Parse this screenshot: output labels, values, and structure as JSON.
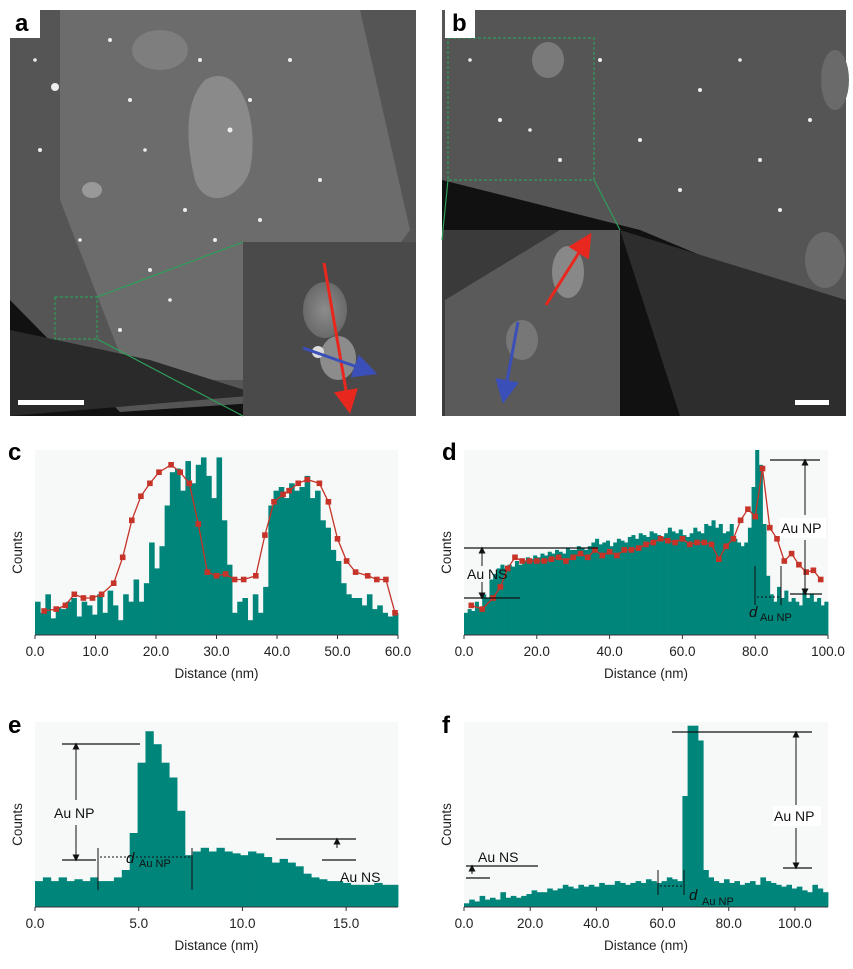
{
  "panels": {
    "a": "a",
    "b": "b",
    "c": "c",
    "d": "d",
    "e": "e",
    "f": "f"
  },
  "annotations": {
    "au_np": "Au NP",
    "au_ns": "Au NS",
    "d_italic": "d",
    "d_sub": "Au NP"
  },
  "colors": {
    "bar": "#00857a",
    "line": "#c63328",
    "bg": "#f7f8f8",
    "arrow_red": "#e8281e",
    "arrow_blue": "#3a4fb8",
    "inset_box": "#2e9e5a"
  },
  "chart_data": [
    {
      "id": "c",
      "type": "bar",
      "xlabel": "Distance (nm)",
      "ylabel": "Counts",
      "xlim": [
        0,
        60
      ],
      "ylim": [
        0,
        100
      ],
      "xticks": [
        "0.0",
        "10.0",
        "20.0",
        "30.0",
        "40.0",
        "50.0",
        "60.0"
      ],
      "bar_values": [
        18,
        12,
        22,
        9,
        15,
        14,
        18,
        20,
        10,
        18,
        16,
        11,
        22,
        12,
        24,
        16,
        8,
        22,
        18,
        30,
        18,
        28,
        50,
        36,
        48,
        70,
        88,
        90,
        78,
        94,
        82,
        92,
        96,
        86,
        74,
        96,
        62,
        38,
        12,
        18,
        20,
        8,
        22,
        12,
        26,
        70,
        78,
        80,
        74,
        82,
        78,
        80,
        86,
        74,
        78,
        62,
        58,
        46,
        40,
        28,
        22,
        20,
        20,
        16,
        22,
        14,
        16,
        12,
        10,
        12
      ],
      "line": [
        [
          1.5,
          13
        ],
        [
          3.5,
          14
        ],
        [
          5,
          16
        ],
        [
          6.5,
          22
        ],
        [
          8,
          20
        ],
        [
          9.5,
          20
        ],
        [
          11,
          22
        ],
        [
          13,
          28
        ],
        [
          14.5,
          42
        ],
        [
          16,
          62
        ],
        [
          17.5,
          75
        ],
        [
          19,
          82
        ],
        [
          20.5,
          88
        ],
        [
          22.5,
          92
        ],
        [
          24,
          88
        ],
        [
          25.5,
          82
        ],
        [
          27,
          60
        ],
        [
          28.5,
          34
        ],
        [
          30,
          32
        ],
        [
          31.5,
          33
        ],
        [
          33,
          30
        ],
        [
          34.5,
          30
        ],
        [
          36.5,
          32
        ],
        [
          38,
          54
        ],
        [
          39.5,
          72
        ],
        [
          41,
          76
        ],
        [
          42,
          78
        ],
        [
          43.5,
          82
        ],
        [
          45,
          84
        ],
        [
          47,
          82
        ],
        [
          48.5,
          72
        ],
        [
          50,
          52
        ],
        [
          51.5,
          40
        ],
        [
          53,
          34
        ],
        [
          55,
          32
        ],
        [
          56.5,
          30
        ],
        [
          58,
          30
        ],
        [
          59.5,
          12
        ]
      ]
    },
    {
      "id": "d",
      "type": "bar",
      "xlabel": "Distance (nm)",
      "ylabel": "Counts",
      "xlim": [
        0,
        100
      ],
      "ylim": [
        0,
        100
      ],
      "xticks": [
        "0.0",
        "20.0",
        "40.0",
        "60.0",
        "80.0",
        "100.0"
      ],
      "bar_values": [
        12,
        14,
        13,
        18,
        15,
        22,
        20,
        30,
        33,
        36,
        38,
        36,
        38,
        37,
        40,
        38,
        40,
        42,
        41,
        43,
        42,
        44,
        43,
        45,
        44,
        46,
        45,
        44,
        47,
        46,
        46,
        48,
        47,
        46,
        48,
        50,
        52,
        49,
        50,
        51,
        48,
        50,
        52,
        51,
        50,
        53,
        54,
        52,
        55,
        54,
        53,
        56,
        55,
        54,
        53,
        55,
        58,
        56,
        55,
        57,
        54,
        53,
        55,
        58,
        56,
        55,
        60,
        59,
        62,
        58,
        60,
        55,
        56,
        60,
        52,
        50,
        48,
        50,
        58,
        80,
        100,
        92,
        60,
        32,
        22,
        18,
        26,
        20,
        24,
        18,
        20,
        18,
        16,
        24,
        20,
        22,
        18,
        20,
        16,
        18
      ],
      "line": [
        [
          2,
          16
        ],
        [
          5,
          14
        ],
        [
          8,
          20
        ],
        [
          10,
          26
        ],
        [
          12,
          36
        ],
        [
          14,
          42
        ],
        [
          16,
          40
        ],
        [
          18,
          40
        ],
        [
          20,
          40
        ],
        [
          22,
          40
        ],
        [
          24,
          41
        ],
        [
          26,
          42
        ],
        [
          28,
          40
        ],
        [
          30,
          42
        ],
        [
          32,
          44
        ],
        [
          34,
          42
        ],
        [
          36,
          46
        ],
        [
          38,
          43
        ],
        [
          40,
          45
        ],
        [
          42,
          43
        ],
        [
          44,
          46
        ],
        [
          46,
          46
        ],
        [
          48,
          47
        ],
        [
          50,
          49
        ],
        [
          52,
          50
        ],
        [
          54,
          52
        ],
        [
          56,
          51
        ],
        [
          58,
          50
        ],
        [
          60,
          52
        ],
        [
          62,
          49
        ],
        [
          64,
          50
        ],
        [
          66,
          50
        ],
        [
          68,
          49
        ],
        [
          70,
          41
        ],
        [
          72,
          48
        ],
        [
          74,
          52
        ],
        [
          76,
          62
        ],
        [
          78,
          68
        ],
        [
          80,
          64
        ],
        [
          82,
          90
        ],
        [
          84,
          58
        ],
        [
          86,
          52
        ],
        [
          88,
          40
        ],
        [
          90,
          44
        ],
        [
          92,
          38
        ],
        [
          94,
          34
        ],
        [
          96,
          35
        ],
        [
          98,
          30
        ]
      ]
    },
    {
      "id": "e",
      "type": "bar",
      "xlabel": "Distance (nm)",
      "ylabel": "Counts",
      "xlim": [
        0,
        17.5
      ],
      "ylim": [
        0,
        100
      ],
      "xticks": [
        "0.0",
        "5.0",
        "10.0",
        "15.0"
      ],
      "bar_values": [
        14,
        16,
        14,
        16,
        14,
        15,
        14,
        16,
        14,
        14,
        16,
        20,
        40,
        78,
        95,
        88,
        78,
        70,
        52,
        28,
        30,
        32,
        30,
        32,
        30,
        29,
        28,
        30,
        29,
        27,
        24,
        26,
        24,
        22,
        18,
        16,
        15,
        14,
        14,
        13,
        12,
        12,
        12,
        13,
        12,
        12
      ]
    },
    {
      "id": "f",
      "type": "bar",
      "xlabel": "Distance (nm)",
      "ylabel": "Counts",
      "xlim": [
        0,
        110
      ],
      "ylim": [
        0,
        100
      ],
      "xticks": [
        "0.0",
        "20.0",
        "40.0",
        "60.0",
        "80.0",
        "100.0"
      ],
      "bar_values": [
        2,
        4,
        3,
        6,
        4,
        5,
        4,
        8,
        5,
        6,
        5,
        6,
        7,
        9,
        8,
        8,
        10,
        9,
        10,
        12,
        11,
        10,
        12,
        11,
        12,
        11,
        13,
        12,
        12,
        14,
        13,
        12,
        13,
        14,
        13,
        15,
        14,
        13,
        14,
        16,
        15,
        14,
        60,
        98,
        98,
        90,
        20,
        16,
        14,
        13,
        15,
        13,
        14,
        12,
        13,
        14,
        12,
        16,
        14,
        13,
        12,
        11,
        12,
        10,
        11,
        9,
        8,
        12,
        10,
        8
      ]
    }
  ]
}
